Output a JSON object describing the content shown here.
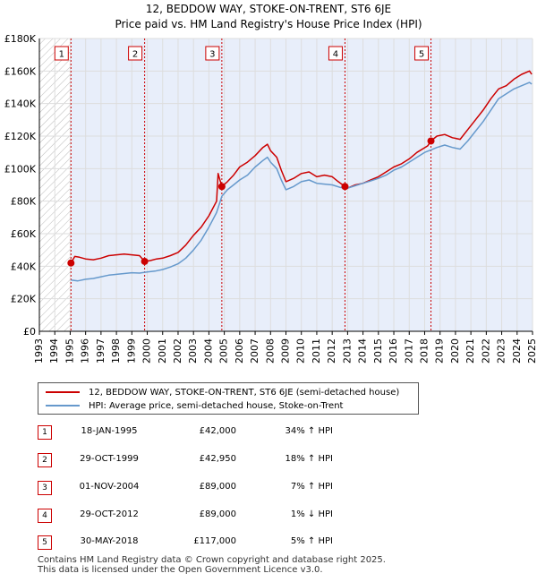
{
  "title_line1": "12, BEDDOW WAY, STOKE-ON-TRENT, ST6 6JE",
  "title_line2": "Price paid vs. HM Land Registry's House Price Index (HPI)",
  "colors": {
    "price_line": "#cc0000",
    "hpi_line": "#6699cc",
    "shade": "#e8eefa",
    "grid": "#dddddd"
  },
  "chart_data": {
    "type": "line",
    "title": "12, BEDDOW WAY, STOKE-ON-TRENT, ST6 6JE",
    "subtitle": "Price paid vs. HM Land Registry's House Price Index (HPI)",
    "xlabel": "",
    "ylabel": "",
    "xlim": [
      1993,
      2025
    ],
    "ylim": [
      0,
      180000
    ],
    "y_ticks": [
      {
        "value": 0,
        "label": "£0"
      },
      {
        "value": 20000,
        "label": "£20K"
      },
      {
        "value": 40000,
        "label": "£40K"
      },
      {
        "value": 60000,
        "label": "£60K"
      },
      {
        "value": 80000,
        "label": "£80K"
      },
      {
        "value": 100000,
        "label": "£100K"
      },
      {
        "value": 120000,
        "label": "£120K"
      },
      {
        "value": 140000,
        "label": "£140K"
      },
      {
        "value": 160000,
        "label": "£160K"
      },
      {
        "value": 180000,
        "label": "£180K"
      }
    ],
    "x_ticks": [
      "1993",
      "1994",
      "1995",
      "1996",
      "1997",
      "1998",
      "1999",
      "2000",
      "2001",
      "2002",
      "2003",
      "2004",
      "2005",
      "2006",
      "2007",
      "2008",
      "2009",
      "2010",
      "2011",
      "2012",
      "2013",
      "2014",
      "2015",
      "2016",
      "2017",
      "2018",
      "2019",
      "2020",
      "2021",
      "2022",
      "2023",
      "2024",
      "2025"
    ],
    "grid": true,
    "series": [
      {
        "name": "12, BEDDOW WAY, STOKE-ON-TRENT, ST6 6JE (semi-detached house)",
        "color": "#cc0000",
        "points": [
          [
            1995.05,
            42000
          ],
          [
            1995.3,
            46000
          ],
          [
            1995.6,
            45500
          ],
          [
            1996,
            44500
          ],
          [
            1996.5,
            44000
          ],
          [
            1997,
            45000
          ],
          [
            1997.5,
            46500
          ],
          [
            1998,
            47000
          ],
          [
            1998.5,
            47500
          ],
          [
            1999,
            47000
          ],
          [
            1999.5,
            46500
          ],
          [
            1999.83,
            42950
          ],
          [
            2000.2,
            43500
          ],
          [
            2000.6,
            44500
          ],
          [
            2001,
            45000
          ],
          [
            2001.5,
            46500
          ],
          [
            2002,
            48500
          ],
          [
            2002.5,
            53000
          ],
          [
            2003,
            59000
          ],
          [
            2003.5,
            64000
          ],
          [
            2004,
            71000
          ],
          [
            2004.5,
            80000
          ],
          [
            2004.6,
            97000
          ],
          [
            2004.75,
            92000
          ],
          [
            2004.84,
            89000
          ],
          [
            2005.2,
            92000
          ],
          [
            2005.6,
            96000
          ],
          [
            2006,
            101000
          ],
          [
            2006.5,
            104000
          ],
          [
            2007,
            108000
          ],
          [
            2007.5,
            113000
          ],
          [
            2007.8,
            115000
          ],
          [
            2008,
            111000
          ],
          [
            2008.4,
            107000
          ],
          [
            2008.7,
            99000
          ],
          [
            2009,
            92000
          ],
          [
            2009.5,
            94000
          ],
          [
            2010,
            97000
          ],
          [
            2010.5,
            98000
          ],
          [
            2011,
            95000
          ],
          [
            2011.5,
            96000
          ],
          [
            2012,
            95000
          ],
          [
            2012.4,
            92000
          ],
          [
            2012.83,
            89000
          ],
          [
            2013,
            88000
          ],
          [
            2013.5,
            90000
          ],
          [
            2014,
            91000
          ],
          [
            2014.5,
            93000
          ],
          [
            2015,
            95000
          ],
          [
            2015.5,
            98000
          ],
          [
            2016,
            101000
          ],
          [
            2016.5,
            103000
          ],
          [
            2017,
            106000
          ],
          [
            2017.5,
            110000
          ],
          [
            2018.2,
            114000
          ],
          [
            2018.41,
            117000
          ],
          [
            2018.8,
            120000
          ],
          [
            2019.3,
            121000
          ],
          [
            2019.8,
            119000
          ],
          [
            2020.3,
            118000
          ],
          [
            2020.8,
            124000
          ],
          [
            2021.3,
            130000
          ],
          [
            2021.8,
            136000
          ],
          [
            2022.3,
            143000
          ],
          [
            2022.8,
            149000
          ],
          [
            2023.3,
            151000
          ],
          [
            2023.8,
            155000
          ],
          [
            2024.3,
            158000
          ],
          [
            2024.8,
            160000
          ],
          [
            2024.95,
            158000
          ]
        ]
      },
      {
        "name": "HPI: Average price, semi-detached house, Stoke-on-Trent",
        "color": "#6699cc",
        "points": [
          [
            1995.05,
            31500
          ],
          [
            1995.5,
            31000
          ],
          [
            1996,
            32000
          ],
          [
            1996.5,
            32500
          ],
          [
            1997,
            33500
          ],
          [
            1997.5,
            34500
          ],
          [
            1998,
            35000
          ],
          [
            1998.5,
            35500
          ],
          [
            1999,
            36000
          ],
          [
            1999.5,
            35800
          ],
          [
            2000,
            36500
          ],
          [
            2000.5,
            37000
          ],
          [
            2001,
            38000
          ],
          [
            2001.5,
            39500
          ],
          [
            2002,
            41500
          ],
          [
            2002.5,
            45000
          ],
          [
            2003,
            50000
          ],
          [
            2003.5,
            56000
          ],
          [
            2004,
            64000
          ],
          [
            2004.5,
            73000
          ],
          [
            2004.84,
            83000
          ],
          [
            2005.2,
            87000
          ],
          [
            2005.6,
            90000
          ],
          [
            2006,
            93000
          ],
          [
            2006.5,
            96000
          ],
          [
            2007,
            101000
          ],
          [
            2007.5,
            105000
          ],
          [
            2007.8,
            107000
          ],
          [
            2008,
            104000
          ],
          [
            2008.4,
            100000
          ],
          [
            2008.7,
            93000
          ],
          [
            2009,
            87000
          ],
          [
            2009.5,
            89000
          ],
          [
            2010,
            92000
          ],
          [
            2010.5,
            93000
          ],
          [
            2011,
            91000
          ],
          [
            2011.5,
            90500
          ],
          [
            2012,
            90000
          ],
          [
            2012.5,
            88500
          ],
          [
            2012.83,
            88000
          ],
          [
            2013,
            88000
          ],
          [
            2013.5,
            89500
          ],
          [
            2014,
            91000
          ],
          [
            2014.5,
            92500
          ],
          [
            2015,
            94000
          ],
          [
            2015.5,
            96000
          ],
          [
            2016,
            99000
          ],
          [
            2016.5,
            101000
          ],
          [
            2017,
            104000
          ],
          [
            2017.5,
            107000
          ],
          [
            2018,
            110000
          ],
          [
            2018.41,
            111500
          ],
          [
            2018.8,
            113000
          ],
          [
            2019.3,
            114500
          ],
          [
            2019.8,
            113000
          ],
          [
            2020.3,
            112000
          ],
          [
            2020.8,
            117000
          ],
          [
            2021.3,
            123000
          ],
          [
            2021.8,
            129000
          ],
          [
            2022.3,
            136000
          ],
          [
            2022.8,
            143000
          ],
          [
            2023.3,
            146000
          ],
          [
            2023.8,
            149000
          ],
          [
            2024.3,
            151000
          ],
          [
            2024.8,
            153000
          ],
          [
            2024.95,
            152000
          ]
        ]
      }
    ],
    "annotations": [
      {
        "label": "1",
        "x": 1995.05,
        "y": 42000
      },
      {
        "label": "2",
        "x": 1999.83,
        "y": 42950
      },
      {
        "label": "3",
        "x": 2004.84,
        "y": 89000
      },
      {
        "label": "4",
        "x": 2012.83,
        "y": 89000
      },
      {
        "label": "5",
        "x": 2018.41,
        "y": 117000
      }
    ],
    "hatched_range": [
      1993,
      1995.05
    ],
    "shaded_range": [
      1995.05,
      2025
    ]
  },
  "legend": {
    "items": [
      {
        "label": "12, BEDDOW WAY, STOKE-ON-TRENT, ST6 6JE (semi-detached house)",
        "color": "#cc0000"
      },
      {
        "label": "HPI: Average price, semi-detached house, Stoke-on-Trent",
        "color": "#6699cc"
      }
    ]
  },
  "transactions": [
    {
      "num": "1",
      "date": "18-JAN-1995",
      "price": "£42,000",
      "hpi": "34% ↑ HPI"
    },
    {
      "num": "2",
      "date": "29-OCT-1999",
      "price": "£42,950",
      "hpi": "18% ↑ HPI"
    },
    {
      "num": "3",
      "date": "01-NOV-2004",
      "price": "£89,000",
      "hpi": "7% ↑ HPI"
    },
    {
      "num": "4",
      "date": "29-OCT-2012",
      "price": "£89,000",
      "hpi": "1% ↓ HPI"
    },
    {
      "num": "5",
      "date": "30-MAY-2018",
      "price": "£117,000",
      "hpi": "5% ↑ HPI"
    }
  ],
  "footer": {
    "line1": "Contains HM Land Registry data © Crown copyright and database right 2025.",
    "line2": "This data is licensed under the Open Government Licence v3.0."
  }
}
